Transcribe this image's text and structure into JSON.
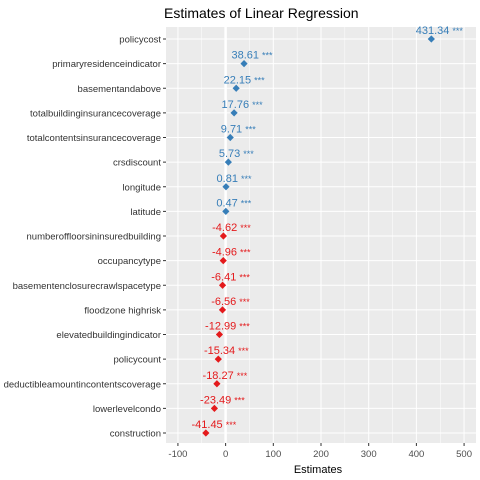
{
  "chart_data": {
    "type": "scatter",
    "title": "Estimates of Linear Regression",
    "xlabel": "Estimates",
    "ylabel": "",
    "xlim": [
      -125,
      525
    ],
    "xticks": [
      -100,
      0,
      100,
      200,
      300,
      400,
      500
    ],
    "grid": true,
    "significance_marker": "***",
    "colors": {
      "positive": "#377eb8",
      "negative": "#e41a1c",
      "panel": "#ebebeb",
      "grid": "#ffffff"
    },
    "categories": [
      "policycost",
      "primaryresidenceindicator",
      "basementandabove",
      "totalbuildinginsurancecoverage",
      "totalcontentsinsurancecoverage",
      "crsdiscount",
      "longitude",
      "latitude",
      "numberoffloorsininsuredbuilding",
      "occupancytype",
      "basementenclosurecrawlspacetype",
      "floodzone highrisk",
      "elevatedbuildingindicator",
      "policycount",
      "deductibleamountincontentscoverage",
      "lowerlevelcondo",
      "construction"
    ],
    "values": [
      431.34,
      38.61,
      22.15,
      17.76,
      9.71,
      5.73,
      0.81,
      0.47,
      -4.62,
      -4.96,
      -6.41,
      -6.56,
      -12.99,
      -15.34,
      -18.27,
      -23.49,
      -41.45
    ],
    "labels": [
      "431.34",
      "38.61",
      "22.15",
      "17.76",
      "9.71",
      "5.73",
      "0.81",
      "0.47",
      "-4.62",
      "-4.96",
      "-6.41",
      "-6.56",
      "-12.99",
      "-15.34",
      "-18.27",
      "-23.49",
      "-41.45"
    ]
  }
}
